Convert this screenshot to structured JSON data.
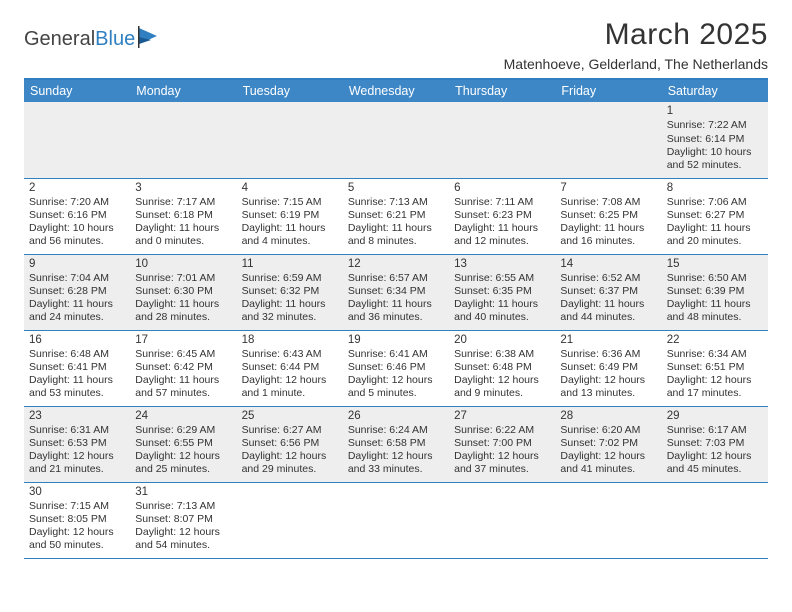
{
  "logo": {
    "part1": "General",
    "part2": "Blue"
  },
  "title": "March 2025",
  "subtitle": "Matenhoeve, Gelderland, The Netherlands",
  "colors": {
    "header_bg": "#3d87c7",
    "header_text": "#ffffff",
    "border": "#2f7fc1",
    "row_alt": "#eeeeee",
    "text": "#333333"
  },
  "daynames": [
    "Sunday",
    "Monday",
    "Tuesday",
    "Wednesday",
    "Thursday",
    "Friday",
    "Saturday"
  ],
  "weeks": [
    [
      null,
      null,
      null,
      null,
      null,
      null,
      {
        "n": "1",
        "sr": "7:22 AM",
        "ss": "6:14 PM",
        "dl": "10 hours and 52 minutes."
      }
    ],
    [
      {
        "n": "2",
        "sr": "7:20 AM",
        "ss": "6:16 PM",
        "dl": "10 hours and 56 minutes."
      },
      {
        "n": "3",
        "sr": "7:17 AM",
        "ss": "6:18 PM",
        "dl": "11 hours and 0 minutes."
      },
      {
        "n": "4",
        "sr": "7:15 AM",
        "ss": "6:19 PM",
        "dl": "11 hours and 4 minutes."
      },
      {
        "n": "5",
        "sr": "7:13 AM",
        "ss": "6:21 PM",
        "dl": "11 hours and 8 minutes."
      },
      {
        "n": "6",
        "sr": "7:11 AM",
        "ss": "6:23 PM",
        "dl": "11 hours and 12 minutes."
      },
      {
        "n": "7",
        "sr": "7:08 AM",
        "ss": "6:25 PM",
        "dl": "11 hours and 16 minutes."
      },
      {
        "n": "8",
        "sr": "7:06 AM",
        "ss": "6:27 PM",
        "dl": "11 hours and 20 minutes."
      }
    ],
    [
      {
        "n": "9",
        "sr": "7:04 AM",
        "ss": "6:28 PM",
        "dl": "11 hours and 24 minutes."
      },
      {
        "n": "10",
        "sr": "7:01 AM",
        "ss": "6:30 PM",
        "dl": "11 hours and 28 minutes."
      },
      {
        "n": "11",
        "sr": "6:59 AM",
        "ss": "6:32 PM",
        "dl": "11 hours and 32 minutes."
      },
      {
        "n": "12",
        "sr": "6:57 AM",
        "ss": "6:34 PM",
        "dl": "11 hours and 36 minutes."
      },
      {
        "n": "13",
        "sr": "6:55 AM",
        "ss": "6:35 PM",
        "dl": "11 hours and 40 minutes."
      },
      {
        "n": "14",
        "sr": "6:52 AM",
        "ss": "6:37 PM",
        "dl": "11 hours and 44 minutes."
      },
      {
        "n": "15",
        "sr": "6:50 AM",
        "ss": "6:39 PM",
        "dl": "11 hours and 48 minutes."
      }
    ],
    [
      {
        "n": "16",
        "sr": "6:48 AM",
        "ss": "6:41 PM",
        "dl": "11 hours and 53 minutes."
      },
      {
        "n": "17",
        "sr": "6:45 AM",
        "ss": "6:42 PM",
        "dl": "11 hours and 57 minutes."
      },
      {
        "n": "18",
        "sr": "6:43 AM",
        "ss": "6:44 PM",
        "dl": "12 hours and 1 minute."
      },
      {
        "n": "19",
        "sr": "6:41 AM",
        "ss": "6:46 PM",
        "dl": "12 hours and 5 minutes."
      },
      {
        "n": "20",
        "sr": "6:38 AM",
        "ss": "6:48 PM",
        "dl": "12 hours and 9 minutes."
      },
      {
        "n": "21",
        "sr": "6:36 AM",
        "ss": "6:49 PM",
        "dl": "12 hours and 13 minutes."
      },
      {
        "n": "22",
        "sr": "6:34 AM",
        "ss": "6:51 PM",
        "dl": "12 hours and 17 minutes."
      }
    ],
    [
      {
        "n": "23",
        "sr": "6:31 AM",
        "ss": "6:53 PM",
        "dl": "12 hours and 21 minutes."
      },
      {
        "n": "24",
        "sr": "6:29 AM",
        "ss": "6:55 PM",
        "dl": "12 hours and 25 minutes."
      },
      {
        "n": "25",
        "sr": "6:27 AM",
        "ss": "6:56 PM",
        "dl": "12 hours and 29 minutes."
      },
      {
        "n": "26",
        "sr": "6:24 AM",
        "ss": "6:58 PM",
        "dl": "12 hours and 33 minutes."
      },
      {
        "n": "27",
        "sr": "6:22 AM",
        "ss": "7:00 PM",
        "dl": "12 hours and 37 minutes."
      },
      {
        "n": "28",
        "sr": "6:20 AM",
        "ss": "7:02 PM",
        "dl": "12 hours and 41 minutes."
      },
      {
        "n": "29",
        "sr": "6:17 AM",
        "ss": "7:03 PM",
        "dl": "12 hours and 45 minutes."
      }
    ],
    [
      {
        "n": "30",
        "sr": "7:15 AM",
        "ss": "8:05 PM",
        "dl": "12 hours and 50 minutes."
      },
      {
        "n": "31",
        "sr": "7:13 AM",
        "ss": "8:07 PM",
        "dl": "12 hours and 54 minutes."
      },
      null,
      null,
      null,
      null,
      null
    ]
  ],
  "labels": {
    "sunrise": "Sunrise: ",
    "sunset": "Sunset: ",
    "daylight": "Daylight: "
  }
}
